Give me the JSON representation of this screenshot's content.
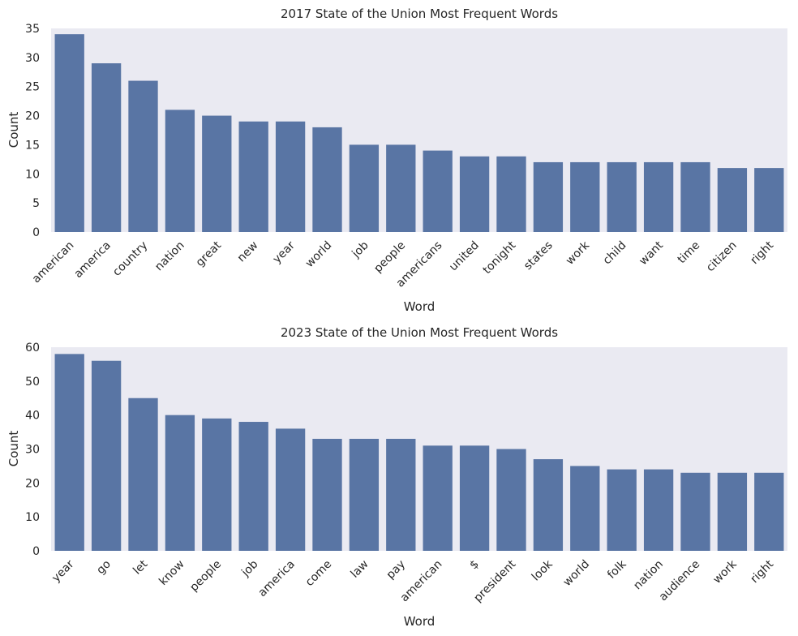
{
  "chart_data": [
    {
      "type": "bar",
      "title": "2017 State of the Union Most Frequent Words",
      "xlabel": "Word",
      "ylabel": "Count",
      "ylim": [
        0,
        35
      ],
      "yticks": [
        0,
        5,
        10,
        15,
        20,
        25,
        30,
        35
      ],
      "grid": false,
      "bar_color": "#5975a4",
      "background_color": "#eaeaf2",
      "categories": [
        "american",
        "america",
        "country",
        "nation",
        "great",
        "new",
        "year",
        "world",
        "job",
        "people",
        "americans",
        "united",
        "tonight",
        "states",
        "work",
        "child",
        "want",
        "time",
        "citizen",
        "right"
      ],
      "values": [
        34,
        29,
        26,
        21,
        20,
        19,
        19,
        18,
        15,
        15,
        14,
        13,
        13,
        12,
        12,
        12,
        12,
        12,
        11,
        11
      ]
    },
    {
      "type": "bar",
      "title": "2023 State of the Union Most Frequent Words",
      "xlabel": "Word",
      "ylabel": "Count",
      "ylim": [
        0,
        60
      ],
      "yticks": [
        0,
        10,
        20,
        30,
        40,
        50,
        60
      ],
      "grid": false,
      "bar_color": "#5975a4",
      "background_color": "#eaeaf2",
      "categories": [
        "year",
        "go",
        "let",
        "know",
        "people",
        "job",
        "america",
        "come",
        "law",
        "pay",
        "american",
        "$",
        "president",
        "look",
        "world",
        "folk",
        "nation",
        "audience",
        "work",
        "right"
      ],
      "values": [
        58,
        56,
        45,
        40,
        39,
        38,
        36,
        33,
        33,
        33,
        31,
        31,
        30,
        27,
        25,
        24,
        24,
        23,
        23,
        23
      ]
    }
  ]
}
